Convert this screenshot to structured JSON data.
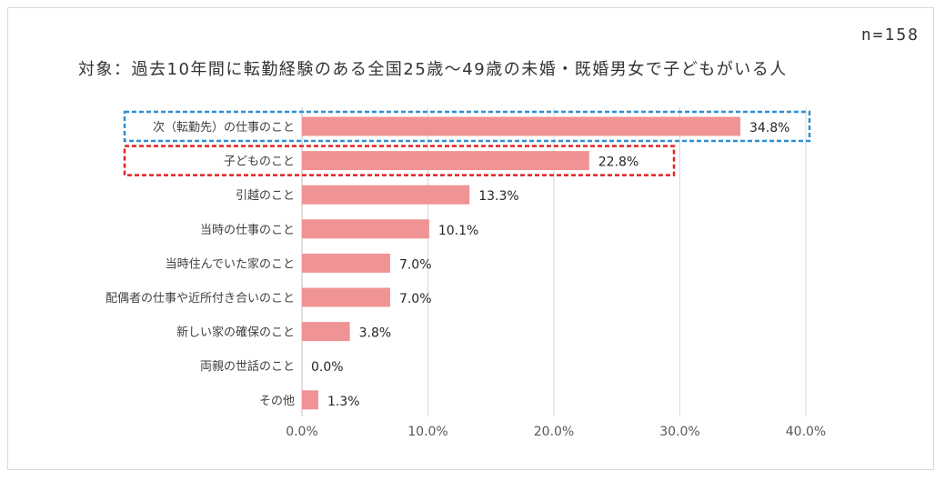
{
  "note": "n=158",
  "chart_data": {
    "type": "bar",
    "orientation": "horizontal",
    "title": "対象：過去10年間に転勤経験のある全国25歳～49歳の未婚・既婚男女で子どもがいる人",
    "categories": [
      "次（転勤先）の仕事のこと",
      "子どものこと",
      "引越のこと",
      "当時の仕事のこと",
      "当時住んでいた家のこと",
      "配偶者の仕事や近所付き合いのこと",
      "新しい家の確保のこと",
      "両親の世話のこと",
      "その他"
    ],
    "values": [
      34.8,
      22.8,
      13.3,
      10.1,
      7.0,
      7.0,
      3.8,
      0.0,
      1.3
    ],
    "value_labels": [
      "34.8%",
      "22.8%",
      "13.3%",
      "10.1%",
      "7.0%",
      "7.0%",
      "3.8%",
      "0.0%",
      "1.3%"
    ],
    "xlim": [
      0,
      40
    ],
    "x_ticks": [
      "0.0%",
      "10.0%",
      "20.0%",
      "30.0%",
      "40.0%"
    ],
    "grid": true,
    "bar_color": "#f09394",
    "highlights": [
      {
        "category_index": 0,
        "color": "#2e8fd6",
        "style": "dashed"
      },
      {
        "category_index": 1,
        "color": "#e02424",
        "style": "dashed"
      }
    ]
  }
}
